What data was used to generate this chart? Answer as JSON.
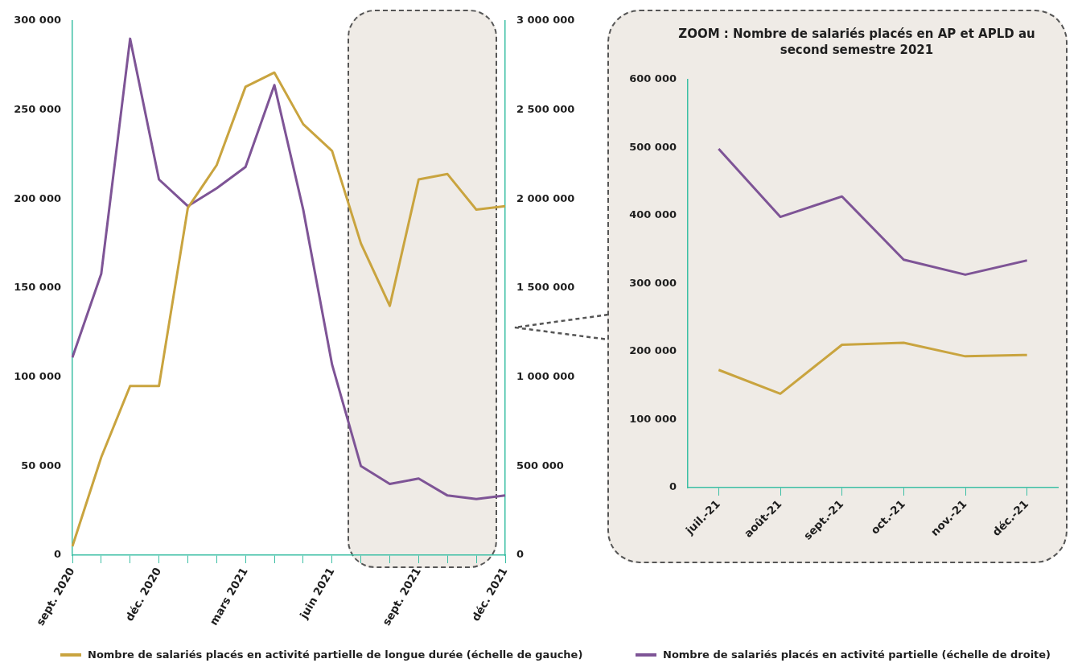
{
  "chart_data": [
    {
      "type": "line",
      "categories": [
        "sept. 2020",
        null,
        null,
        "déc. 2020",
        null,
        null,
        "mars 2021",
        null,
        null,
        "juin 2021",
        null,
        null,
        "sept. 2021",
        null,
        null,
        "déc. 2021"
      ],
      "series": [
        {
          "name": "Nombre de salariés placés en activité partielle de longue durée (échelle de gauche)",
          "color": "#c9a43f",
          "values": [
            5000,
            55000,
            95000,
            95000,
            195000,
            219000,
            263000,
            271000,
            242000,
            227000,
            175000,
            140000,
            211000,
            214000,
            194000,
            196000
          ]
        },
        {
          "name": "Nombre de salariés placés en activité partielle (échelle de droite)",
          "color": "#7e5496",
          "axis": "y2",
          "values": [
            1110000,
            1580000,
            2900000,
            2110000,
            1960000,
            2060000,
            2180000,
            2640000,
            1940000,
            1070000,
            500000,
            400000,
            430000,
            335000,
            315000,
            335000
          ]
        }
      ],
      "ylim": [
        0,
        300000
      ],
      "yticks": [
        0,
        50000,
        100000,
        150000,
        200000,
        250000,
        300000
      ],
      "y2lim": [
        0,
        3000000
      ],
      "y2ticks": [
        0,
        500000,
        1000000,
        1500000,
        2000000,
        2500000,
        3000000
      ],
      "grid": false,
      "legend": "bottom",
      "marker": "none"
    },
    {
      "type": "line",
      "title": "ZOOM : Nombre de salariés placés en AP et APLD au second semestre 2021",
      "categories": [
        "juil.-21",
        "août-21",
        "sept.-21",
        "oct.-21",
        "nov.-21",
        "déc.-21"
      ],
      "series": [
        {
          "color": "#7e5496",
          "values": [
            498000,
            398000,
            428000,
            335000,
            313000,
            334000
          ]
        },
        {
          "color": "#c9a43f",
          "values": [
            173000,
            138000,
            210000,
            213000,
            193000,
            195000
          ]
        }
      ],
      "ylim": [
        0,
        600000
      ],
      "yticks": [
        0,
        100000,
        200000,
        300000,
        400000,
        500000,
        600000
      ],
      "grid": false,
      "marker": "none"
    }
  ]
}
